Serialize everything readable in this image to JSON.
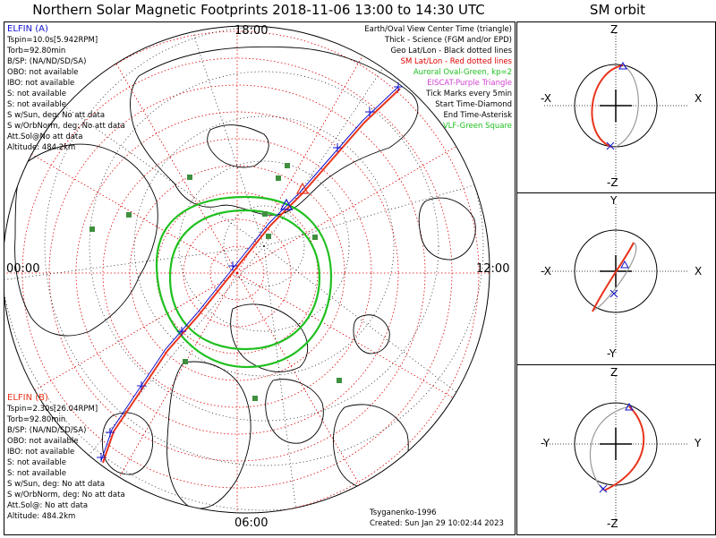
{
  "title": "Northern Solar Magnetic Footprints 2018-11-06 13:00 to 14:30 UTC",
  "sm_orbit_title": "SM orbit",
  "clock_labels": {
    "top": "18:00",
    "left": "00:00",
    "right": "12:00",
    "bottom": "06:00"
  },
  "elfin_a": {
    "name": "ELFIN (A)",
    "color": "#1010d0",
    "lines": [
      "Tspin=10.0s[5.942RPM]",
      "Torb=92.80min",
      "B/SP: (NA/ND/SD/SA)",
      "OBO: not available",
      "IBO: not available",
      "S: not available",
      "S: not available",
      "S w/Sun, deg: No att data",
      "S w/OrbNorm, deg: No att data",
      "Att.Sol@No att data",
      "Altitude: 484.2km"
    ]
  },
  "elfin_b": {
    "name": "ELFIN (B)",
    "color": "#e8341c",
    "lines": [
      "Tspin=2.30s[26.04RPM]",
      "Torb=92.80min",
      "B/SP: (NA/ND/SD/SA)",
      "OBO: not available",
      "IBO: not available",
      "S: not available",
      "S: not available",
      "S w/Sun, deg: No att data",
      "S w/OrbNorm, deg: No att data",
      "Att.Sol@: No att data",
      "Altitude: 484.2km"
    ]
  },
  "legend": [
    {
      "text": "Earth/Oval View Center Time (triangle)",
      "color": "#000000"
    },
    {
      "text": "Thick - Science (FGM and/or EPD)",
      "color": "#000000"
    },
    {
      "text": "Geo Lat/Lon - Black dotted lines",
      "color": "#000000"
    },
    {
      "text": "SM Lat/Lon - Red dotted lines",
      "color": "#e00000"
    },
    {
      "text": "Auroral Oval-Green, kp=2",
      "color": "#20c020"
    },
    {
      "text": "EISCAT-Purple Triangle",
      "color": "#d040d0"
    },
    {
      "text": "Tick Marks every 5min",
      "color": "#000000"
    },
    {
      "text": "Start Time-Diamond",
      "color": "#000000"
    },
    {
      "text": "End Time-Asterisk",
      "color": "#000000"
    },
    {
      "text": "VLF-Green Square",
      "color": "#20c020"
    }
  ],
  "footer": {
    "model": "Tsyganenko-1996",
    "created": "Created: Sun Jan 29 10:02:44 2023"
  },
  "sm_panels": [
    {
      "top": "Z",
      "bottom": "-Z",
      "left": "-X",
      "right": "X"
    },
    {
      "top": "Y",
      "bottom": "-Y",
      "left": "-X",
      "right": "X"
    },
    {
      "top": "Z",
      "bottom": "-Z",
      "left": "-Y",
      "right": "Y"
    }
  ],
  "colors": {
    "track_a": "#1010d0",
    "track_b": "#e8341c",
    "grid_sm": "#e00000",
    "oval": "#20c020",
    "vlf": "#3f8f3f"
  }
}
